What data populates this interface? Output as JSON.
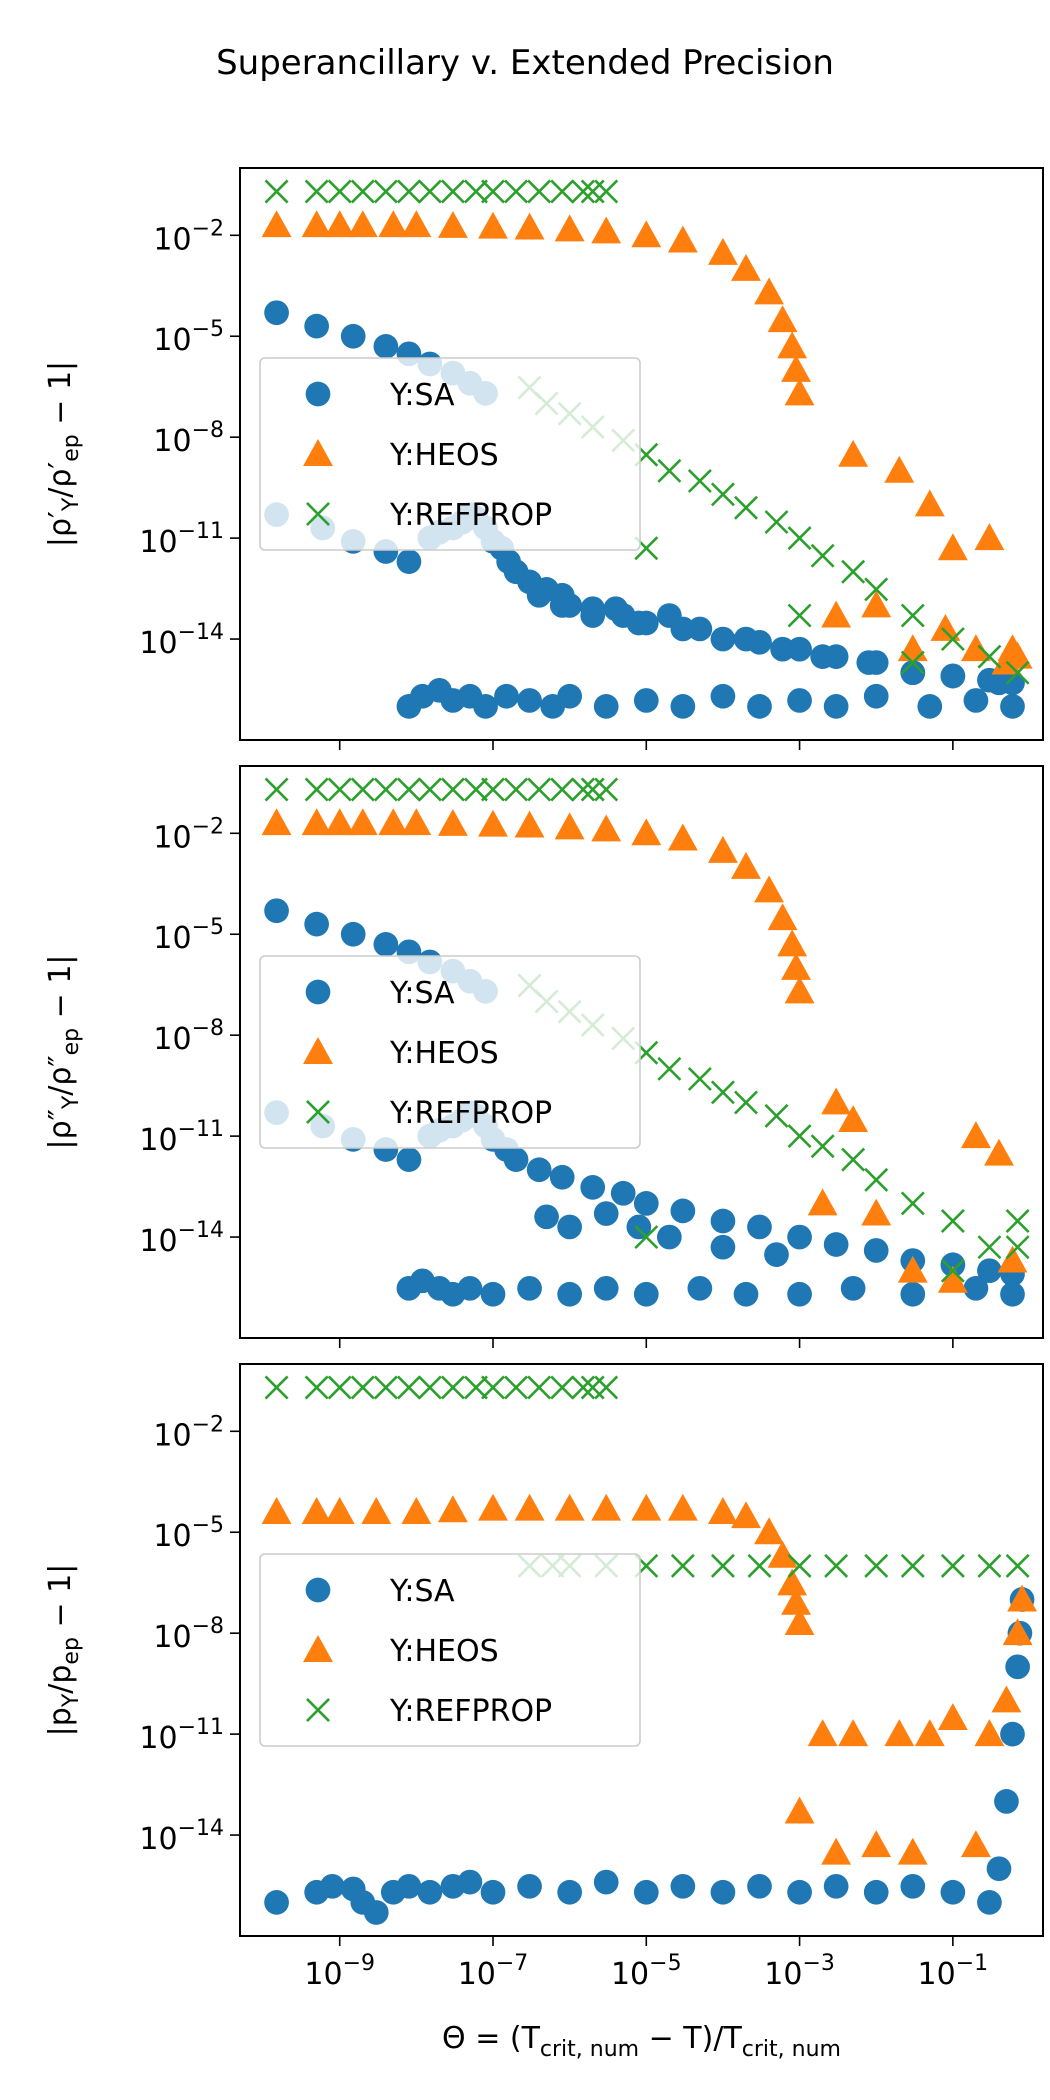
{
  "figure": {
    "title": "Superancillary v. Extended Precision"
  },
  "chart_data": [
    {
      "type": "scatter",
      "ylabel": "|ρ′_Y/ρ′_ep − 1|",
      "xlabel": "",
      "xscale": "log",
      "yscale": "log",
      "xlim": [
        5e-11,
        1.5
      ],
      "ylim": [
        1e-17,
        1
      ],
      "xticks": [
        1e-09,
        1e-07,
        1e-05,
        0.001,
        0.1
      ],
      "yticks": [
        0.01,
        1e-05,
        1e-08,
        1e-11,
        1e-14
      ],
      "ytick_labels": [
        "10^-2",
        "10^-5",
        "10^-8",
        "10^-11",
        "10^-14"
      ],
      "xtick_labels": [],
      "legend": {
        "location": "center-left",
        "entries": [
          "Y:SA",
          "Y:HEOS",
          "Y:REFPROP"
        ]
      },
      "series": [
        {
          "name": "Y:SA",
          "marker": "circle",
          "color": "#1f77b4",
          "x": [
            1.5e-10,
            5e-10,
            1.5e-09,
            4e-09,
            8e-09,
            1.5e-08,
            3e-08,
            5e-08,
            8e-08,
            1.5e-10,
            6e-10,
            1.5e-09,
            4e-09,
            8e-09,
            1.5e-08,
            2e-08,
            3e-08,
            4e-08,
            5e-08,
            6e-08,
            8e-08,
            1e-07,
            1.3e-07,
            1.6e-07,
            2e-07,
            3e-07,
            5e-07,
            8e-07,
            1e-06,
            2e-06,
            5e-06,
            1e-05,
            3e-05,
            0.0001,
            0.0003,
            0.001,
            0.003,
            0.01,
            0.03,
            0.1,
            0.3,
            0.6,
            8e-09,
            1.2e-08,
            2e-08,
            3e-08,
            5e-08,
            8e-08,
            1.5e-07,
            3e-07,
            6e-07,
            1e-06,
            3e-06,
            1e-05,
            3e-05,
            0.0001,
            0.0003,
            0.001,
            0.003,
            0.01,
            0.05,
            0.2,
            0.6,
            4e-07,
            8e-07,
            2e-06,
            4e-06,
            8e-06,
            2e-05,
            5e-05,
            0.0002,
            0.0006,
            0.002,
            0.008,
            0.03,
            0.1,
            0.4
          ],
          "y": [
            5e-05,
            2e-05,
            1e-05,
            5e-06,
            3e-06,
            1.5e-06,
            8e-07,
            4e-07,
            2e-07,
            5e-11,
            2e-11,
            8e-12,
            4e-12,
            2e-12,
            1e-11,
            1.5e-11,
            2e-11,
            3e-11,
            5e-11,
            4e-11,
            2e-11,
            8e-12,
            5e-12,
            2e-12,
            1e-12,
            5e-13,
            3e-13,
            2e-13,
            1e-13,
            8e-14,
            5e-14,
            3e-14,
            2e-14,
            1e-14,
            8e-15,
            5e-15,
            3e-15,
            2e-15,
            1e-15,
            8e-16,
            6e-16,
            5e-16,
            1e-16,
            2e-16,
            3e-16,
            1.5e-16,
            2e-16,
            1e-16,
            2e-16,
            1.5e-16,
            1e-16,
            2e-16,
            1e-16,
            1.5e-16,
            1e-16,
            2e-16,
            1e-16,
            1.5e-16,
            1e-16,
            2e-16,
            1e-16,
            1.5e-16,
            1e-16,
            2e-13,
            1e-13,
            5e-14,
            8e-14,
            3e-14,
            5e-14,
            2e-14,
            1e-14,
            5e-15,
            3e-15,
            2e-15,
            1e-15,
            8e-16,
            5e-16
          ]
        },
        {
          "name": "Y:HEOS",
          "marker": "triangle",
          "color": "#ff7f0e",
          "x": [
            1.5e-10,
            5e-10,
            1e-09,
            2e-09,
            5e-09,
            1e-08,
            3e-08,
            1e-07,
            3e-07,
            1e-06,
            3e-06,
            1e-05,
            3e-05,
            0.0001,
            0.0002,
            0.0004,
            0.0006,
            0.0008,
            0.0009,
            0.001,
            0.003,
            0.005,
            0.01,
            0.02,
            0.03,
            0.05,
            0.08,
            0.1,
            0.2,
            0.3,
            0.5,
            0.6,
            0.7
          ],
          "y": [
            0.02,
            0.02,
            0.02,
            0.02,
            0.02,
            0.02,
            0.019,
            0.018,
            0.017,
            0.015,
            0.013,
            0.01,
            0.007,
            0.003,
            0.001,
            0.0002,
            3e-05,
            5e-06,
            1e-06,
            2e-07,
            5e-14,
            3e-09,
            1e-13,
            1e-09,
            5e-15,
            1e-10,
            2e-14,
            5e-12,
            5e-15,
            1e-11,
            2e-15,
            5e-15,
            3e-15
          ]
        },
        {
          "name": "Y:REFPROP",
          "marker": "x",
          "color": "#2ca02c",
          "x": [
            1.5e-10,
            5e-10,
            1e-09,
            2e-09,
            4e-09,
            8e-09,
            1.5e-08,
            3e-08,
            6e-08,
            1e-07,
            2e-07,
            4e-07,
            8e-07,
            1.5e-06,
            2e-06,
            3e-06,
            3e-07,
            5e-07,
            1e-06,
            2e-06,
            5e-06,
            1e-05,
            2e-05,
            5e-05,
            0.0001,
            0.0002,
            0.0005,
            0.001,
            0.002,
            0.005,
            0.01,
            0.03,
            0.1,
            0.3,
            0.7,
            1e-05,
            0.001,
            0.03
          ],
          "y": [
            0.2,
            0.2,
            0.2,
            0.2,
            0.2,
            0.2,
            0.2,
            0.2,
            0.2,
            0.2,
            0.2,
            0.2,
            0.2,
            0.2,
            0.2,
            0.2,
            3e-07,
            1e-07,
            5e-08,
            2e-08,
            8e-09,
            3e-09,
            1e-09,
            5e-10,
            2e-10,
            8e-11,
            3e-11,
            1e-11,
            3e-12,
            1e-12,
            3e-13,
            5e-14,
            1e-14,
            3e-15,
            1e-15,
            5e-12,
            5e-14,
            2e-15
          ]
        }
      ]
    },
    {
      "type": "scatter",
      "ylabel": "|ρ″_Y/ρ″_ep − 1|",
      "xlabel": "",
      "xscale": "log",
      "yscale": "log",
      "xlim": [
        5e-11,
        1.5
      ],
      "ylim": [
        1e-17,
        1
      ],
      "xticks": [
        1e-09,
        1e-07,
        1e-05,
        0.001,
        0.1
      ],
      "yticks": [
        0.01,
        1e-05,
        1e-08,
        1e-11,
        1e-14
      ],
      "ytick_labels": [
        "10^-2",
        "10^-5",
        "10^-8",
        "10^-11",
        "10^-14"
      ],
      "xtick_labels": [],
      "legend": {
        "location": "center-left",
        "entries": [
          "Y:SA",
          "Y:HEOS",
          "Y:REFPROP"
        ]
      },
      "series": [
        {
          "name": "Y:SA",
          "marker": "circle",
          "color": "#1f77b4",
          "x": [
            1.5e-10,
            5e-10,
            1.5e-09,
            4e-09,
            8e-09,
            1.5e-08,
            3e-08,
            5e-08,
            8e-08,
            1.5e-10,
            6e-10,
            1.5e-09,
            4e-09,
            8e-09,
            1.5e-08,
            2e-08,
            3e-08,
            4e-08,
            5e-08,
            6e-08,
            8e-08,
            1e-07,
            1.5e-07,
            2e-07,
            4e-07,
            8e-07,
            2e-06,
            5e-06,
            1e-05,
            3e-05,
            0.0001,
            0.0003,
            0.001,
            0.003,
            0.01,
            0.03,
            0.1,
            0.3,
            0.6,
            8e-09,
            1.2e-08,
            2e-08,
            3e-08,
            5e-08,
            1e-07,
            3e-07,
            1e-06,
            3e-06,
            1e-05,
            5e-05,
            0.0002,
            0.001,
            0.005,
            0.03,
            0.2,
            0.6,
            5e-07,
            1e-06,
            3e-06,
            8e-06,
            2e-05,
            0.0001,
            0.0005
          ],
          "y": [
            5e-05,
            2e-05,
            1e-05,
            5e-06,
            3e-06,
            1.5e-06,
            8e-07,
            4e-07,
            2e-07,
            5e-11,
            2e-11,
            8e-12,
            4e-12,
            2e-12,
            1e-11,
            1.5e-11,
            2e-11,
            3e-11,
            5e-11,
            4e-11,
            2e-11,
            8e-12,
            4e-12,
            2e-12,
            1e-12,
            6e-13,
            3e-13,
            2e-13,
            1e-13,
            6e-14,
            3e-14,
            2e-14,
            1e-14,
            6e-15,
            4e-15,
            2e-15,
            1.5e-15,
            1e-15,
            8e-16,
            3e-16,
            5e-16,
            3e-16,
            2e-16,
            3e-16,
            2e-16,
            3e-16,
            2e-16,
            3e-16,
            2e-16,
            3e-16,
            2e-16,
            2e-16,
            3e-16,
            2e-16,
            3e-16,
            2e-16,
            4e-14,
            2e-14,
            5e-14,
            2e-14,
            1e-14,
            5e-15,
            3e-15
          ]
        },
        {
          "name": "Y:HEOS",
          "marker": "triangle",
          "color": "#ff7f0e",
          "x": [
            1.5e-10,
            5e-10,
            1e-09,
            2e-09,
            5e-09,
            1e-08,
            3e-08,
            1e-07,
            3e-07,
            1e-06,
            3e-06,
            1e-05,
            3e-05,
            0.0001,
            0.0002,
            0.0004,
            0.0006,
            0.0008,
            0.0009,
            0.001,
            0.002,
            0.003,
            0.005,
            0.01,
            0.03,
            0.1,
            0.2,
            0.4,
            0.6
          ],
          "y": [
            0.02,
            0.02,
            0.02,
            0.02,
            0.02,
            0.02,
            0.019,
            0.018,
            0.017,
            0.015,
            0.013,
            0.01,
            0.007,
            0.003,
            0.001,
            0.0002,
            3e-05,
            5e-06,
            1e-06,
            2e-07,
            1e-13,
            1e-10,
            3e-11,
            5e-14,
            1e-15,
            5e-16,
            1e-11,
            3e-12,
            2e-15
          ]
        },
        {
          "name": "Y:REFPROP",
          "marker": "x",
          "color": "#2ca02c",
          "x": [
            1.5e-10,
            5e-10,
            1e-09,
            2e-09,
            4e-09,
            8e-09,
            1.5e-08,
            3e-08,
            6e-08,
            1e-07,
            2e-07,
            4e-07,
            8e-07,
            1.5e-06,
            2e-06,
            3e-06,
            3e-07,
            5e-07,
            1e-06,
            2e-06,
            5e-06,
            1e-05,
            2e-05,
            5e-05,
            0.0001,
            0.0002,
            0.0005,
            0.001,
            0.002,
            0.005,
            0.01,
            0.03,
            0.1,
            0.3,
            0.7,
            1e-05,
            0.1,
            0.7
          ],
          "y": [
            0.2,
            0.2,
            0.2,
            0.2,
            0.2,
            0.2,
            0.2,
            0.2,
            0.2,
            0.2,
            0.2,
            0.2,
            0.2,
            0.2,
            0.2,
            0.2,
            3e-07,
            1e-07,
            5e-08,
            2e-08,
            8e-09,
            3e-09,
            1e-09,
            5e-10,
            2e-10,
            1e-10,
            4e-11,
            1e-11,
            5e-12,
            2e-12,
            5e-13,
            1e-13,
            3e-14,
            5e-15,
            5e-15,
            1e-14,
            1e-15,
            3e-14
          ]
        }
      ]
    },
    {
      "type": "scatter",
      "ylabel": "|p_Y/p_ep − 1|",
      "xlabel": "Θ = (T_crit,num − T)/T_crit,num",
      "xscale": "log",
      "yscale": "log",
      "xlim": [
        5e-11,
        1.5
      ],
      "ylim": [
        1e-17,
        1
      ],
      "xticks": [
        1e-09,
        1e-07,
        1e-05,
        0.001,
        0.1
      ],
      "yticks": [
        0.01,
        1e-05,
        1e-08,
        1e-11,
        1e-14
      ],
      "ytick_labels": [
        "10^-2",
        "10^-5",
        "10^-8",
        "10^-11",
        "10^-14"
      ],
      "xtick_labels": [
        "10^-9",
        "10^-7",
        "10^-5",
        "10^-3",
        "10^-1"
      ],
      "legend": {
        "location": "center-left",
        "entries": [
          "Y:SA",
          "Y:HEOS",
          "Y:REFPROP"
        ]
      },
      "series": [
        {
          "name": "Y:SA",
          "marker": "circle",
          "color": "#1f77b4",
          "x": [
            1.5e-10,
            5e-10,
            8e-10,
            1.5e-09,
            2e-09,
            3e-09,
            5e-09,
            8e-09,
            1.5e-08,
            3e-08,
            5e-08,
            1e-07,
            3e-07,
            1e-06,
            3e-06,
            1e-05,
            3e-05,
            0.0001,
            0.0003,
            0.001,
            0.003,
            0.01,
            0.03,
            0.1,
            0.3,
            0.4,
            0.5,
            0.6,
            0.7,
            0.75,
            0.8
          ],
          "y": [
            1e-16,
            2e-16,
            3e-16,
            2.5e-16,
            1e-16,
            5e-17,
            2e-16,
            3e-16,
            2e-16,
            3e-16,
            4e-16,
            2e-16,
            3e-16,
            2e-16,
            4e-16,
            2e-16,
            3e-16,
            2e-16,
            3e-16,
            2e-16,
            3e-16,
            2e-16,
            3e-16,
            2e-16,
            1e-16,
            1e-15,
            1e-13,
            1e-11,
            1e-09,
            1e-08,
            1e-07
          ]
        },
        {
          "name": "Y:HEOS",
          "marker": "triangle",
          "color": "#ff7f0e",
          "x": [
            1.5e-10,
            5e-10,
            1e-09,
            3e-09,
            1e-08,
            3e-08,
            1e-07,
            3e-07,
            1e-06,
            3e-06,
            1e-05,
            3e-05,
            0.0001,
            0.0002,
            0.0004,
            0.0006,
            0.0008,
            0.0009,
            0.001,
            0.001,
            0.002,
            0.003,
            0.005,
            0.01,
            0.02,
            0.03,
            0.05,
            0.1,
            0.2,
            0.3,
            0.5,
            0.7,
            0.8
          ],
          "y": [
            4e-05,
            4e-05,
            4e-05,
            4e-05,
            4e-05,
            4.5e-05,
            5e-05,
            5e-05,
            5e-05,
            5e-05,
            5e-05,
            5e-05,
            4e-05,
            3e-05,
            1e-05,
            2e-06,
            3e-07,
            8e-08,
            2e-08,
            5e-14,
            1e-11,
            3e-15,
            1e-11,
            5e-15,
            1e-11,
            3e-15,
            1e-11,
            3e-11,
            5e-15,
            1e-11,
            1e-10,
            1e-08,
            1e-07
          ]
        },
        {
          "name": "Y:REFPROP",
          "marker": "x",
          "color": "#2ca02c",
          "x": [
            1.5e-10,
            5e-10,
            1e-09,
            2e-09,
            4e-09,
            8e-09,
            1.5e-08,
            3e-08,
            6e-08,
            1e-07,
            2e-07,
            4e-07,
            8e-07,
            1.5e-06,
            2e-06,
            3e-06,
            3e-07,
            6e-07,
            1e-06,
            3e-06,
            1e-05,
            3e-05,
            0.0001,
            0.0003,
            0.001,
            0.003,
            0.01,
            0.03,
            0.1,
            0.3,
            0.7
          ],
          "y": [
            0.2,
            0.2,
            0.2,
            0.2,
            0.2,
            0.2,
            0.2,
            0.2,
            0.2,
            0.2,
            0.2,
            0.2,
            0.2,
            0.2,
            0.2,
            0.2,
            1e-06,
            1e-06,
            1e-06,
            1e-06,
            1e-06,
            1e-06,
            1e-06,
            1e-06,
            1e-06,
            1e-06,
            1e-06,
            1e-06,
            1e-06,
            1e-06,
            1e-06
          ]
        }
      ]
    }
  ]
}
